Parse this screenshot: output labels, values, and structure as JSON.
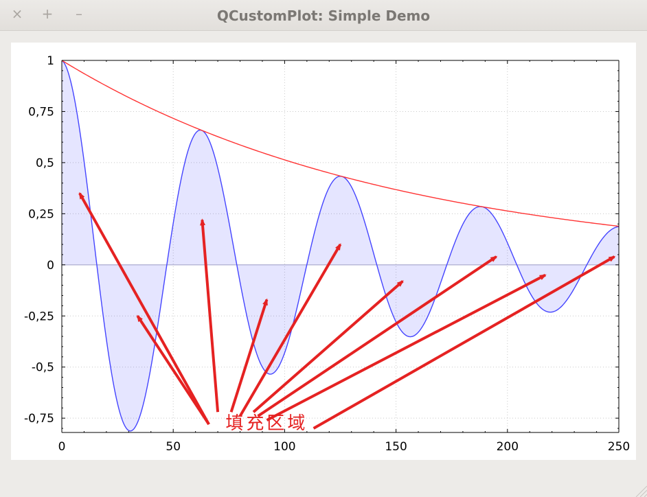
{
  "window": {
    "title": "QCustomPlot: Simple Demo",
    "close_glyph": "×",
    "maximize_glyph": "+",
    "minimize_glyph": "–"
  },
  "chart_data": {
    "type": "line",
    "xlim": [
      0,
      250
    ],
    "ylim": [
      -0.82,
      1.0
    ],
    "x_ticks": [
      0,
      50,
      100,
      150,
      200,
      250
    ],
    "x_tick_labels": [
      "0",
      "50",
      "100",
      "150",
      "200",
      "250"
    ],
    "y_ticks": [
      1,
      0.75,
      0.5,
      0.25,
      0,
      -0.25,
      -0.5,
      -0.75
    ],
    "y_tick_labels": [
      "1",
      "0,75",
      "0,5",
      "0,25",
      "0",
      "-0,25",
      "-0,5",
      "-0,75"
    ],
    "grid": true,
    "series": [
      {
        "color": "#4444ff",
        "fill": "rgba(0,0,255,0.10)",
        "formula": "exp(-x/150)*cos(x/10)",
        "x": [
          0,
          5,
          10,
          15,
          20,
          25,
          30,
          35,
          40,
          45,
          50,
          55,
          60,
          65,
          70,
          75,
          80,
          85,
          90,
          95,
          100,
          105,
          110,
          115,
          120,
          125,
          130,
          135,
          140,
          145,
          150,
          155,
          160,
          165,
          170,
          175,
          180,
          185,
          190,
          195,
          200,
          205,
          210,
          215,
          220,
          225,
          230,
          235,
          240,
          245,
          250
        ],
        "y": [
          1.0,
          0.849,
          0.465,
          0.006,
          -0.365,
          -0.508,
          -0.811,
          -0.742,
          -0.502,
          -0.161,
          0.203,
          0.472,
          0.659,
          0.557,
          0.482,
          0.177,
          -0.087,
          -0.348,
          -0.503,
          -0.533,
          -0.429,
          -0.231,
          0.002,
          0.254,
          0.402,
          0.435,
          0.385,
          0.254,
          0.068,
          -0.113,
          -0.255,
          -0.343,
          -0.346,
          -0.275,
          -0.15,
          0.01,
          0.178,
          0.264,
          0.282,
          0.268,
          0.166,
          0.03,
          -0.107,
          -0.198,
          -0.23,
          -0.206,
          -0.137,
          -0.027,
          0.08,
          0.145,
          0.19
        ]
      },
      {
        "color": "#ff3333",
        "formula": "exp(-x/150)",
        "x": [
          0,
          25,
          50,
          75,
          100,
          125,
          150,
          175,
          200,
          225,
          250
        ],
        "y": [
          1.0,
          0.846,
          0.717,
          0.607,
          0.513,
          0.435,
          0.368,
          0.311,
          0.264,
          0.223,
          0.189
        ]
      }
    ],
    "annotation": {
      "text": "填充区域",
      "color": "#e52222",
      "arrow_targets": [
        [
          8,
          0.35
        ],
        [
          34,
          -0.25
        ],
        [
          63,
          0.22
        ],
        [
          92,
          -0.17
        ],
        [
          125,
          0.1
        ],
        [
          153,
          -0.08
        ],
        [
          195,
          0.04
        ],
        [
          217,
          -0.05
        ],
        [
          248,
          0.04
        ]
      ]
    }
  }
}
